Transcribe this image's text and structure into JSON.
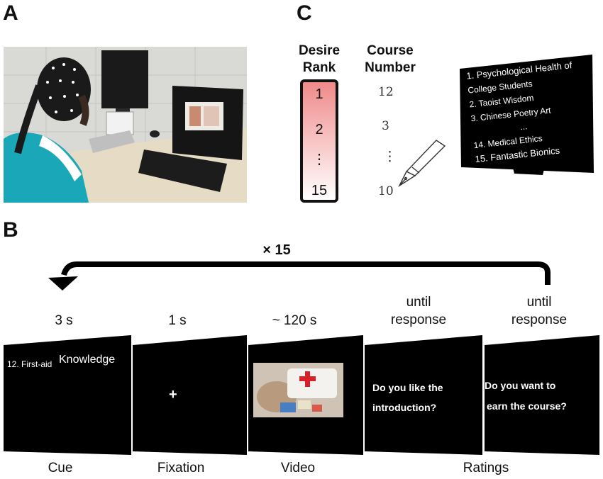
{
  "panels": {
    "a": "A",
    "b": "B",
    "c": "C"
  },
  "panel_c": {
    "desire_rank_header": [
      "Desire",
      "Rank"
    ],
    "course_number_header": [
      "Course",
      "Number"
    ],
    "ranks": [
      "1",
      "2",
      "⋮",
      "15"
    ],
    "numbers": [
      "12",
      "3",
      "⋮",
      "10"
    ],
    "course_list": [
      "1. Psychological Health of",
      "College Students",
      "2. Taoist Wisdom",
      "3. Chinese Poetry Art",
      "...",
      "14. Medical Ethics",
      "15. Fantastic Bionics"
    ],
    "rank_gradient": {
      "top": "#f08a8a",
      "bottom": "#ffffff"
    }
  },
  "panel_b": {
    "repeat_label": "× 15",
    "durations": [
      "3 s",
      "1 s",
      "~ 120 s",
      "until\nresponse",
      "until\nresponse"
    ],
    "cue_text": [
      "12. First-aid",
      "Knowledge"
    ],
    "fixation_symbol": "+",
    "rating_q1": [
      "Do you like the",
      "introduction?"
    ],
    "rating_q2": [
      "Do you want to",
      "earn the course?"
    ],
    "stage_labels": [
      "Cue",
      "Fixation",
      "Video",
      "Ratings"
    ]
  },
  "colors": {
    "screen": "#000000",
    "first_aid_cross": "#d8202a"
  }
}
